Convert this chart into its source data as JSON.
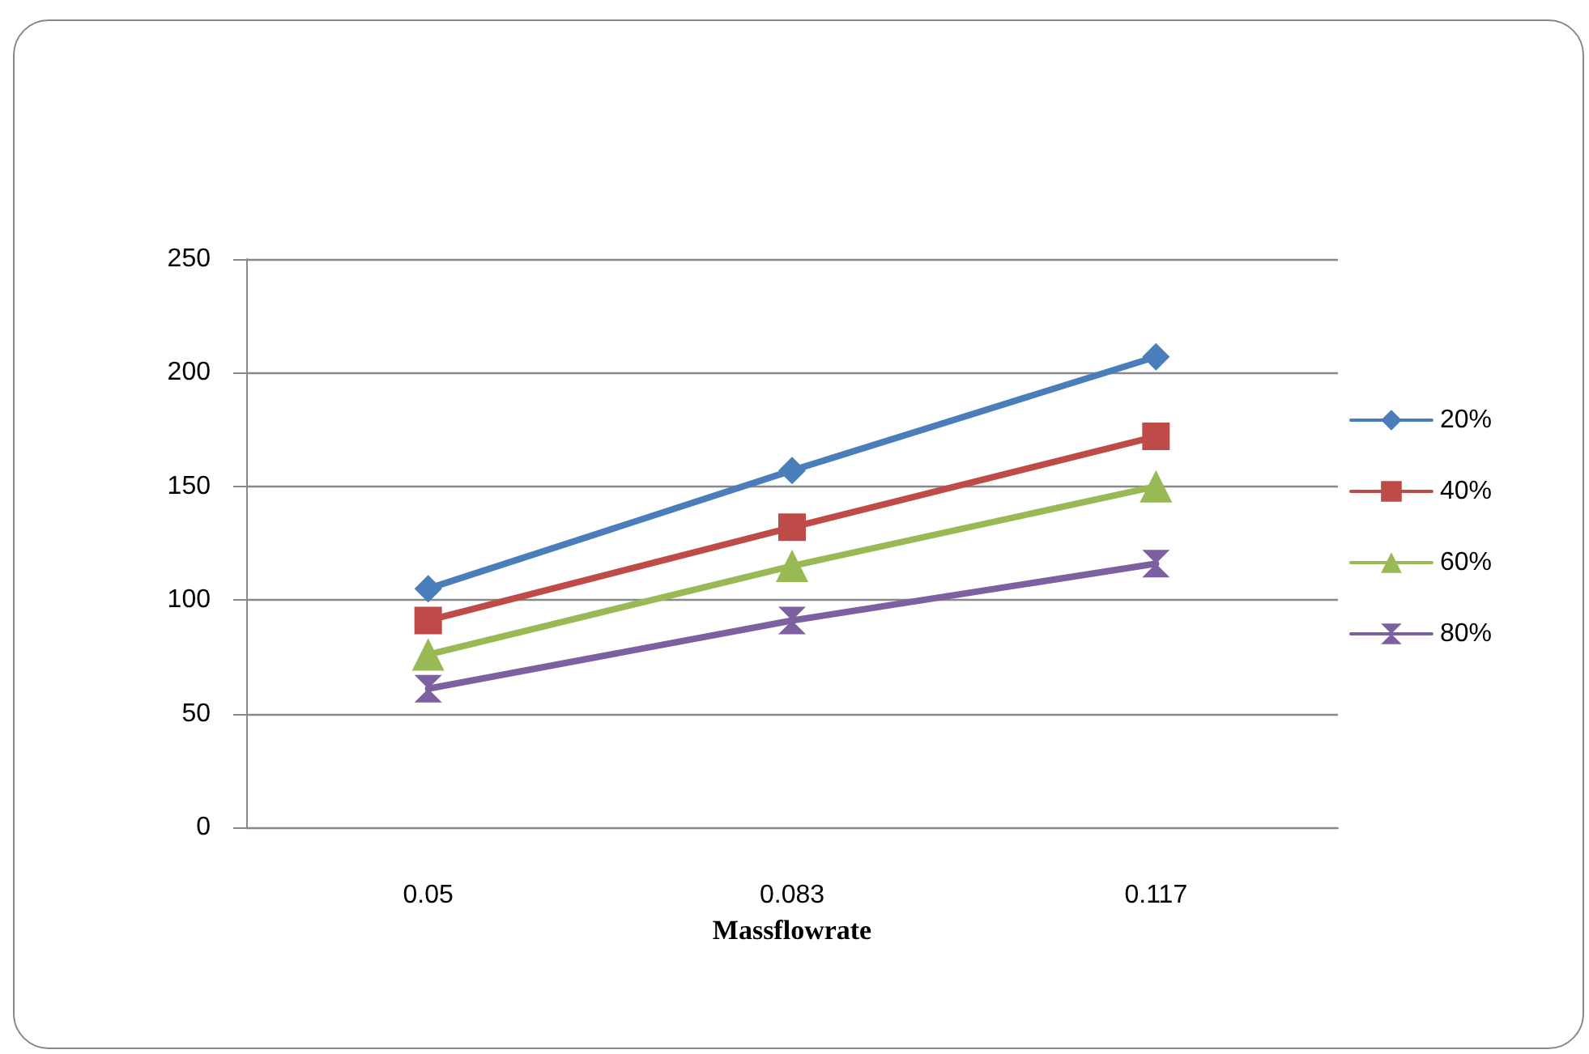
{
  "chart_data": {
    "type": "line",
    "xlabel": "Massflowrate",
    "categories": [
      "0.05",
      "0.083",
      "0.117"
    ],
    "series": [
      {
        "name": "20%",
        "color": "#4a7ebb",
        "marker": "diamond",
        "values": [
          105,
          157,
          207
        ]
      },
      {
        "name": "40%",
        "color": "#be4b48",
        "marker": "square",
        "values": [
          91,
          132,
          172
        ]
      },
      {
        "name": "60%",
        "color": "#98b954",
        "marker": "triangle",
        "values": [
          76,
          115,
          150
        ]
      },
      {
        "name": "80%",
        "color": "#7d60a0",
        "marker": "cross",
        "values": [
          61,
          91,
          116
        ]
      }
    ],
    "ylim": [
      0,
      250
    ],
    "yticks": [
      0,
      50,
      100,
      150,
      200,
      250
    ],
    "grid": "y",
    "legend": "right",
    "line_style": "solid"
  }
}
